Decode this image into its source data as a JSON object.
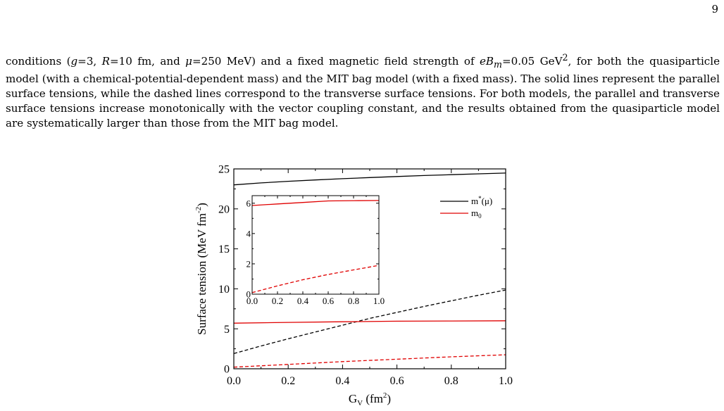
{
  "page": {
    "number": "9"
  },
  "text": {
    "seg1": "conditions (",
    "g": "g",
    "seg2": "=3, ",
    "R": "R",
    "seg3": "=10 fm, and ",
    "mu": "μ",
    "seg4": "=250 MeV) and a fixed magnetic field strength of ",
    "eBm": "eB",
    "m_sub": "m",
    "seg5": "=0.05 GeV",
    "sup2": "2",
    "seg6": ", for both the quasiparticle model (with a chemical-potential-dependent mass) and the MIT bag model (with a fixed mass). The solid lines represent the parallel surface tensions, while the dashed lines correspond to the transverse surface tensions. For both models, the parallel and transverse surface tensions increase monotonically with the vector coupling constant, and the results obtained from the quasiparticle model are systematically larger than those from the MIT bag model."
  },
  "chart_data": {
    "type": "line",
    "xlabel": "G_V (fm^2)",
    "ylabel": "Surface tension (MeV fm^-2)",
    "xlim": [
      0,
      1.0
    ],
    "ylim": [
      0,
      25
    ],
    "xticks": [
      "0.0",
      "0.2",
      "0.4",
      "0.6",
      "0.8",
      "1.0"
    ],
    "yticks": [
      "0",
      "5",
      "10",
      "15",
      "20",
      "25"
    ],
    "legend": {
      "placement": "top-right",
      "entries": [
        {
          "label": "m*(μ)",
          "color": "#000000"
        },
        {
          "label": "m0",
          "color": "#e00000"
        }
      ]
    },
    "series": [
      {
        "name": "m*(μ)",
        "kind": "parallel",
        "style": "solid",
        "color": "#000000",
        "x": [
          0,
          0.1,
          0.2,
          0.3,
          0.4,
          0.5,
          0.6,
          0.7,
          0.8,
          0.9,
          1.0
        ],
        "y": [
          23.0,
          23.25,
          23.45,
          23.62,
          23.78,
          23.92,
          24.05,
          24.17,
          24.28,
          24.38,
          24.48
        ]
      },
      {
        "name": "m*(μ)",
        "kind": "transverse",
        "style": "dashed",
        "color": "#000000",
        "x": [
          0,
          0.1,
          0.2,
          0.3,
          0.4,
          0.5,
          0.6,
          0.7,
          0.8,
          0.9,
          1.0
        ],
        "y": [
          1.9,
          2.85,
          3.75,
          4.6,
          5.45,
          6.3,
          7.05,
          7.8,
          8.5,
          9.2,
          9.85
        ]
      },
      {
        "name": "m0",
        "kind": "parallel",
        "style": "solid",
        "color": "#e00000",
        "x": [
          0,
          0.2,
          0.4,
          0.6,
          0.8,
          1.0
        ],
        "y": [
          5.7,
          5.8,
          5.88,
          5.95,
          5.98,
          6.0
        ]
      },
      {
        "name": "m0",
        "kind": "transverse",
        "style": "dashed",
        "color": "#e00000",
        "x": [
          0,
          0.2,
          0.4,
          0.6,
          0.8,
          1.0
        ],
        "y": [
          0.2,
          0.55,
          0.9,
          1.2,
          1.5,
          1.75
        ]
      }
    ],
    "inset": {
      "type": "line",
      "xlim": [
        0,
        1.0
      ],
      "ylim": [
        0,
        6.5
      ],
      "xticks": [
        "0.0",
        "0.2",
        "0.4",
        "0.6",
        "0.8",
        "1.0"
      ],
      "yticks": [
        "0",
        "2",
        "4",
        "6"
      ],
      "series": [
        {
          "name": "m0",
          "kind": "parallel",
          "style": "solid",
          "color": "#e00000",
          "x": [
            0,
            0.2,
            0.4,
            0.6,
            0.8,
            1.0
          ],
          "y": [
            5.85,
            5.95,
            6.05,
            6.15,
            6.17,
            6.18
          ]
        },
        {
          "name": "m0",
          "kind": "transverse",
          "style": "dashed",
          "color": "#e00000",
          "x": [
            0,
            0.2,
            0.4,
            0.6,
            0.8,
            1.0
          ],
          "y": [
            0.1,
            0.55,
            0.95,
            1.3,
            1.6,
            1.9
          ]
        }
      ]
    }
  }
}
